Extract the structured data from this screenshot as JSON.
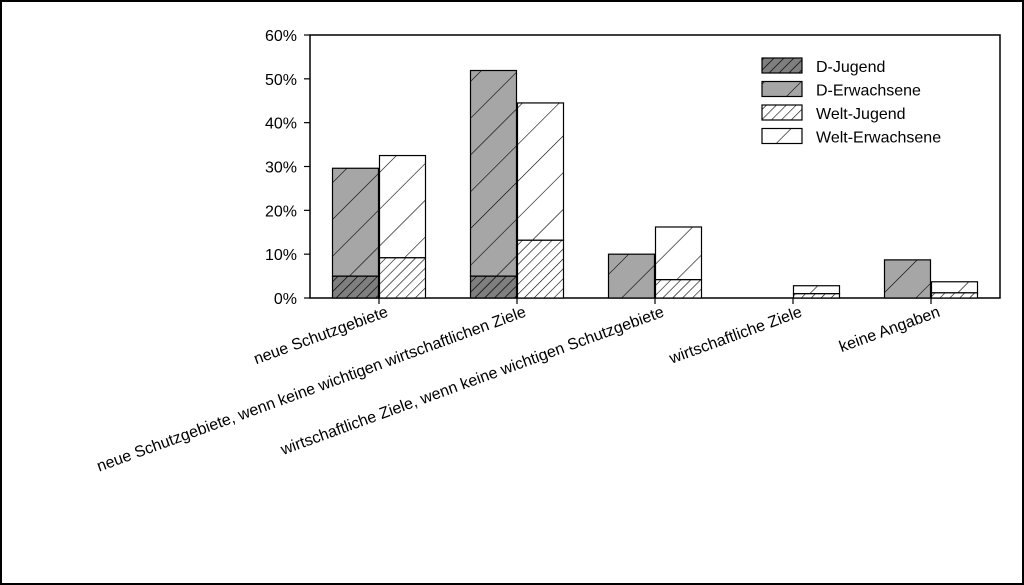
{
  "chart_data": {
    "type": "bar",
    "stacked": true,
    "grid": false,
    "legend_position": "top-right",
    "y_tick_labels": [
      "0%",
      "10%",
      "20%",
      "30%",
      "40%",
      "50%",
      "60%"
    ],
    "ylim": [
      0,
      60
    ],
    "categories": [
      "neue Schutzgebiete",
      "neue Schutzgebiete, wenn keine wichtigen wirtschaftlichen Ziele",
      "wirtschaftliche Ziele, wenn keine wichtigen Schutzgebiete",
      "wirtschaftliche Ziele",
      "keine Angaben"
    ],
    "series": [
      {
        "name": "D-Jugend",
        "stack": "D",
        "pattern": "dense-dark",
        "values": [
          5,
          5,
          0,
          0,
          0
        ]
      },
      {
        "name": "D-Erwachsene",
        "stack": "D",
        "pattern": "sparse-gray",
        "values": [
          24.6,
          46.9,
          10,
          0,
          8.7
        ]
      },
      {
        "name": "Welt-Jugend",
        "stack": "Welt",
        "pattern": "dense-white",
        "values": [
          9.2,
          13.2,
          4.2,
          1,
          1.2
        ]
      },
      {
        "name": "Welt-Erwachsene",
        "stack": "Welt",
        "pattern": "sparse-white",
        "values": [
          23.3,
          31.3,
          12,
          1.8,
          2.5
        ]
      }
    ]
  }
}
